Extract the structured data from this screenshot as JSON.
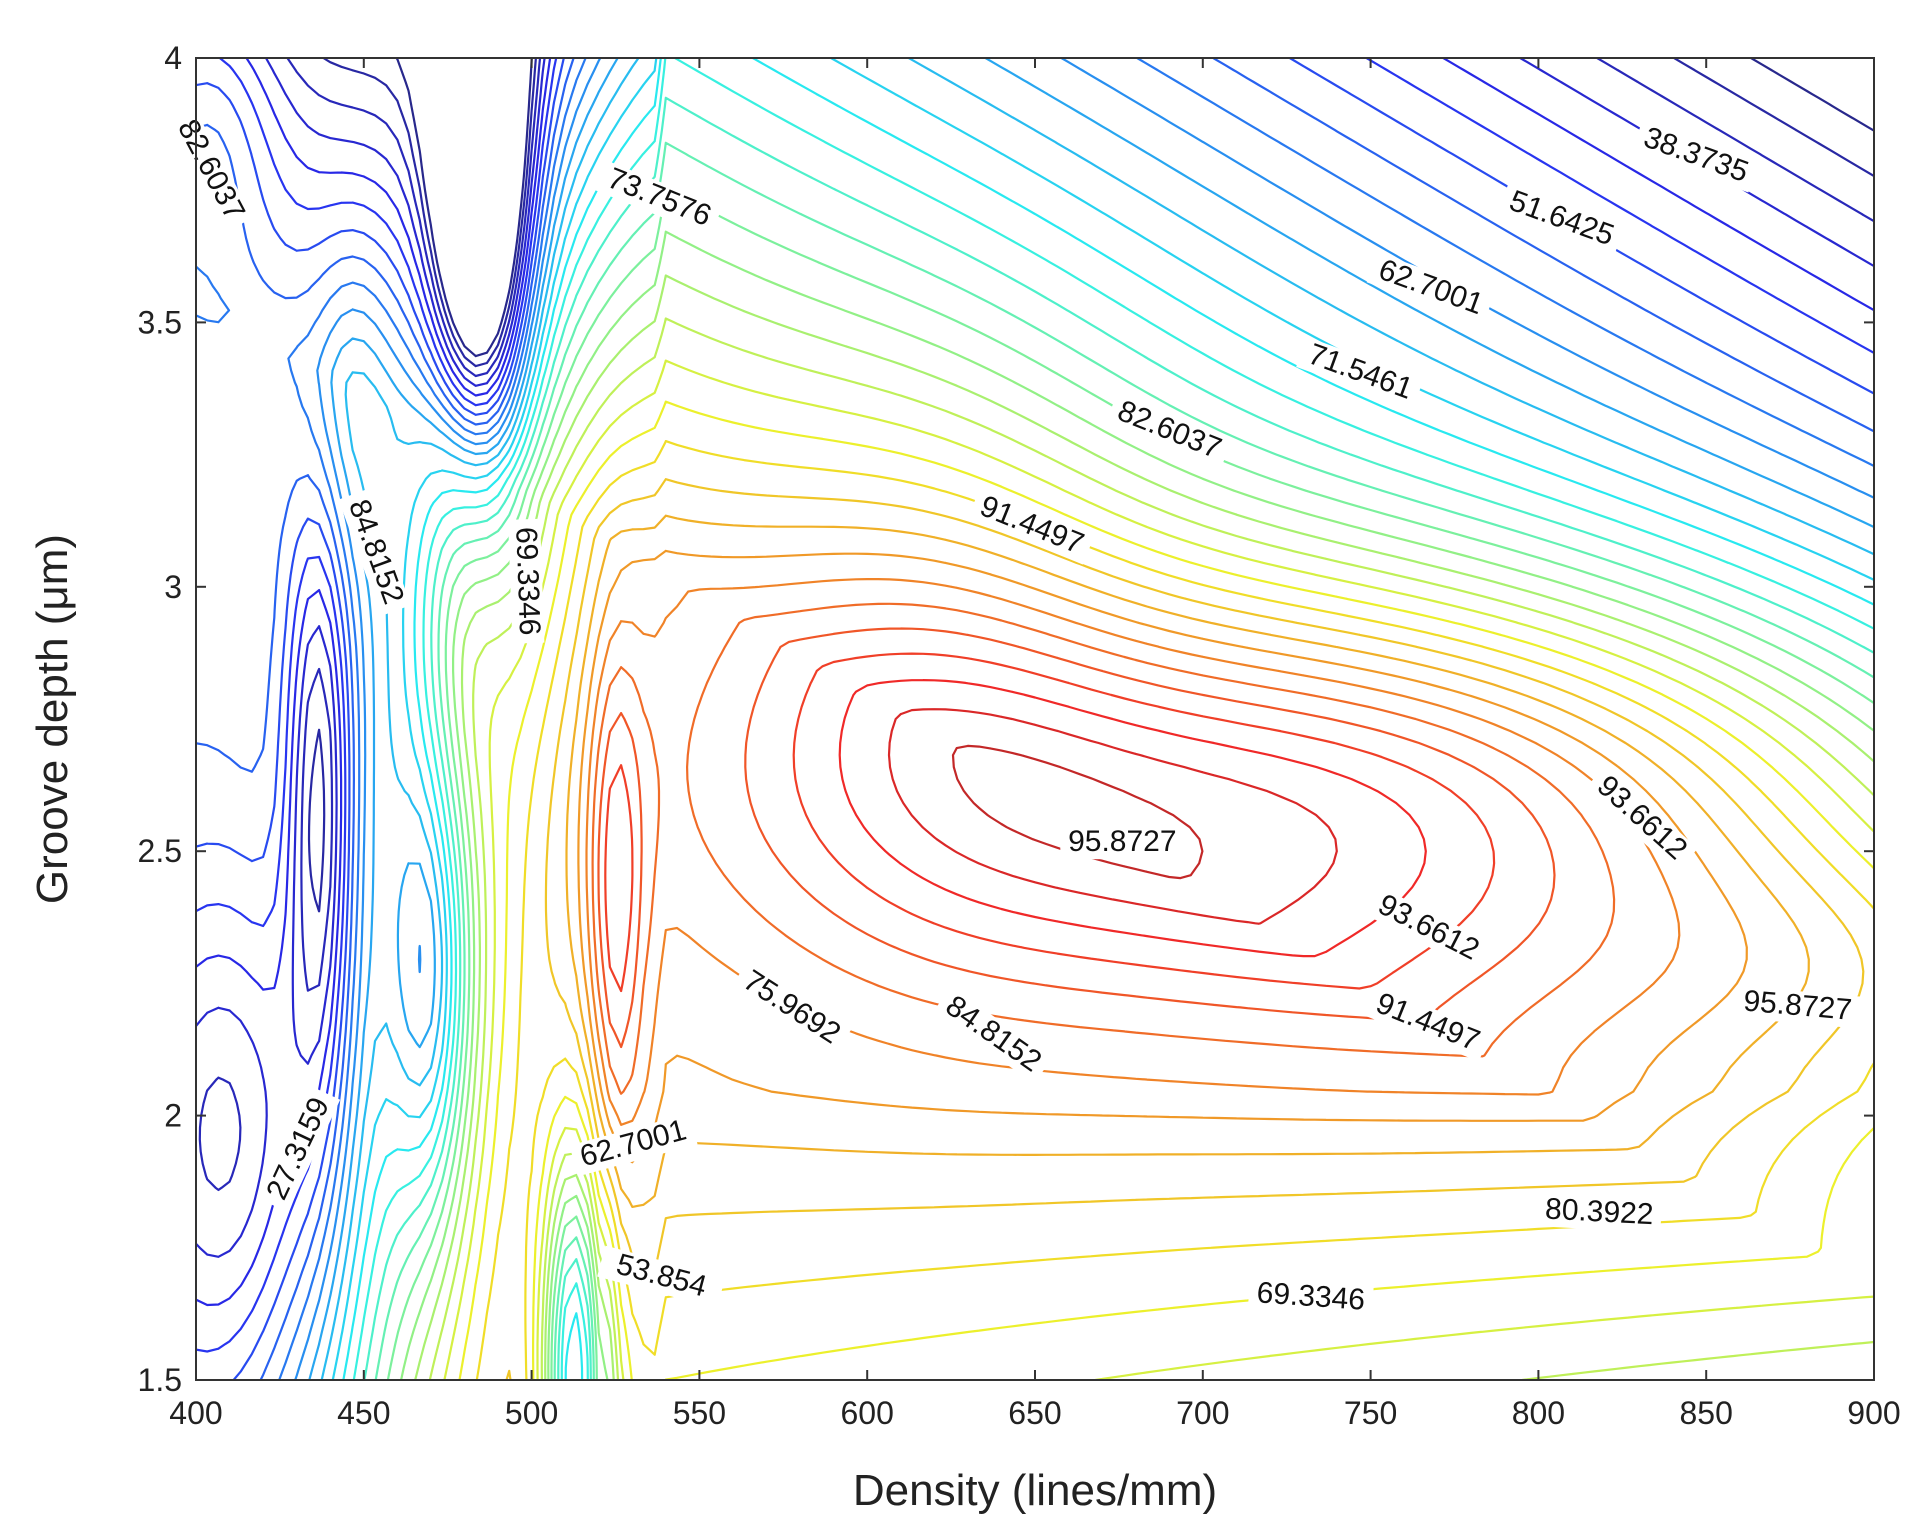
{
  "chart_data": {
    "type": "contour",
    "title": "",
    "xlabel": "Density (lines/mm)",
    "ylabel": "Groove depth (μm)",
    "xlim": [
      400,
      900
    ],
    "ylim": [
      1.5,
      4
    ],
    "xticks": [
      400,
      450,
      500,
      550,
      600,
      650,
      700,
      750,
      800,
      850,
      900
    ],
    "yticks": [
      1.5,
      2,
      2.5,
      3,
      3.5,
      4
    ],
    "xtick_labels": [
      "400",
      "450",
      "500",
      "550",
      "600",
      "650",
      "700",
      "750",
      "800",
      "850",
      "900"
    ],
    "ytick_labels": [
      "1.5",
      "2",
      "2.5",
      "3",
      "3.5",
      "4"
    ],
    "grid": false,
    "colormap": "jet",
    "value_range": [
      20,
      98
    ],
    "contour_labels": [
      {
        "text": "82.6037",
        "x": 402,
        "y": 3.78,
        "angle": 62
      },
      {
        "text": "73.7576",
        "x": 537,
        "y": 3.72,
        "angle": 22
      },
      {
        "text": "38.3735",
        "x": 846,
        "y": 3.8,
        "angle": 20
      },
      {
        "text": "51.6425",
        "x": 806,
        "y": 3.68,
        "angle": 20
      },
      {
        "text": "62.7001",
        "x": 767,
        "y": 3.55,
        "angle": 20
      },
      {
        "text": "71.5461",
        "x": 746,
        "y": 3.39,
        "angle": 20
      },
      {
        "text": "82.6037",
        "x": 689,
        "y": 3.28,
        "angle": 22
      },
      {
        "text": "91.4497",
        "x": 648,
        "y": 3.1,
        "angle": 22
      },
      {
        "text": "84.8152",
        "x": 451,
        "y": 3.06,
        "angle": 70
      },
      {
        "text": "69.3346",
        "x": 496,
        "y": 3.01,
        "angle": 88
      },
      {
        "text": "95.8727",
        "x": 676,
        "y": 2.5,
        "angle": 0
      },
      {
        "text": "93.6612",
        "x": 829,
        "y": 2.55,
        "angle": 42
      },
      {
        "text": "93.6612",
        "x": 766,
        "y": 2.34,
        "angle": 27
      },
      {
        "text": "91.4497",
        "x": 766,
        "y": 2.16,
        "angle": 22
      },
      {
        "text": "95.8727",
        "x": 877,
        "y": 2.19,
        "angle": 5
      },
      {
        "text": "75.9692",
        "x": 576,
        "y": 2.19,
        "angle": 33
      },
      {
        "text": "84.8152",
        "x": 636,
        "y": 2.14,
        "angle": 35
      },
      {
        "text": "62.7001",
        "x": 531,
        "y": 1.93,
        "angle": -15
      },
      {
        "text": "27.3159",
        "x": 433,
        "y": 1.93,
        "angle": -65
      },
      {
        "text": "53.854",
        "x": 538,
        "y": 1.68,
        "angle": 15
      },
      {
        "text": "80.3922",
        "x": 818,
        "y": 1.8,
        "angle": 3
      },
      {
        "text": "69.3346",
        "x": 732,
        "y": 1.64,
        "angle": 4
      }
    ]
  }
}
